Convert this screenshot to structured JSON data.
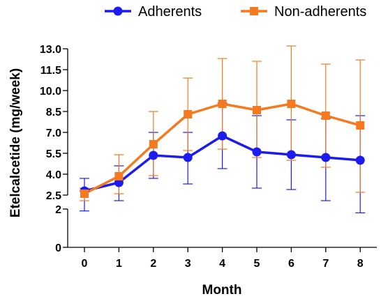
{
  "chart_data": {
    "type": "line",
    "xlabel": "Month",
    "ylabel": "Etelcalcetide (mg/week)",
    "x": [
      0,
      1,
      2,
      3,
      4,
      5,
      6,
      7,
      8
    ],
    "x_ticks": [
      "0",
      "1",
      "2",
      "3",
      "4",
      "5",
      "6",
      "7",
      "8"
    ],
    "y_ticks_upper": [
      "2.5",
      "4.0",
      "5.5",
      "7.0",
      "8.5",
      "10.0",
      "11.5",
      "13.0"
    ],
    "y_ticks_lower": [
      "0",
      "2"
    ],
    "y_axis_break": {
      "lower_range": [
        0,
        2
      ],
      "upper_range": [
        2.5,
        13.0
      ]
    },
    "grid": false,
    "legend_position": "top",
    "series": [
      {
        "name": "Adherents",
        "color": "#1c1cf0",
        "marker": "circle",
        "values": [
          2.8,
          3.4,
          5.35,
          5.2,
          6.75,
          5.6,
          5.4,
          5.2,
          5.0
        ],
        "err_low": [
          1.9,
          2.3,
          3.7,
          3.3,
          4.4,
          3.0,
          2.9,
          2.3,
          1.8
        ],
        "err_high": [
          3.7,
          4.6,
          7.0,
          7.0,
          9.1,
          8.2,
          7.9,
          8.0,
          8.2
        ]
      },
      {
        "name": "Non-adherents",
        "color": "#f5791f",
        "marker": "square",
        "values": [
          2.6,
          3.85,
          6.15,
          8.3,
          9.05,
          8.6,
          9.05,
          8.2,
          7.5
        ],
        "err_low": [
          2.3,
          2.6,
          3.9,
          5.7,
          5.8,
          5.2,
          5.0,
          4.5,
          2.7
        ],
        "err_high": [
          3.0,
          5.4,
          8.5,
          10.9,
          12.3,
          12.1,
          13.2,
          11.9,
          12.2
        ]
      }
    ]
  }
}
